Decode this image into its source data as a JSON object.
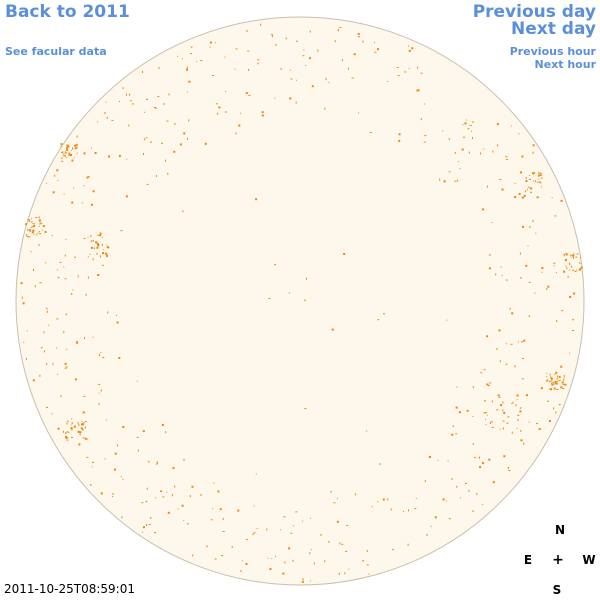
{
  "nav": {
    "back_label": "Back to 2011",
    "facular_label": "See facular data",
    "prev_day_label": "Previous day",
    "next_day_label": "Next day",
    "prev_hour_label": "Previous hour",
    "next_hour_label": "Next hour"
  },
  "timestamp": "2011-10-25T08:59:01",
  "compass": {
    "north": "N",
    "south": "S",
    "east": "E",
    "west": "W",
    "center": "+"
  },
  "colors": {
    "link": "#5b8fd9",
    "disk_fill": "#fef7ec",
    "disk_border": "#c8bfae",
    "facula": "#e88a0c"
  }
}
